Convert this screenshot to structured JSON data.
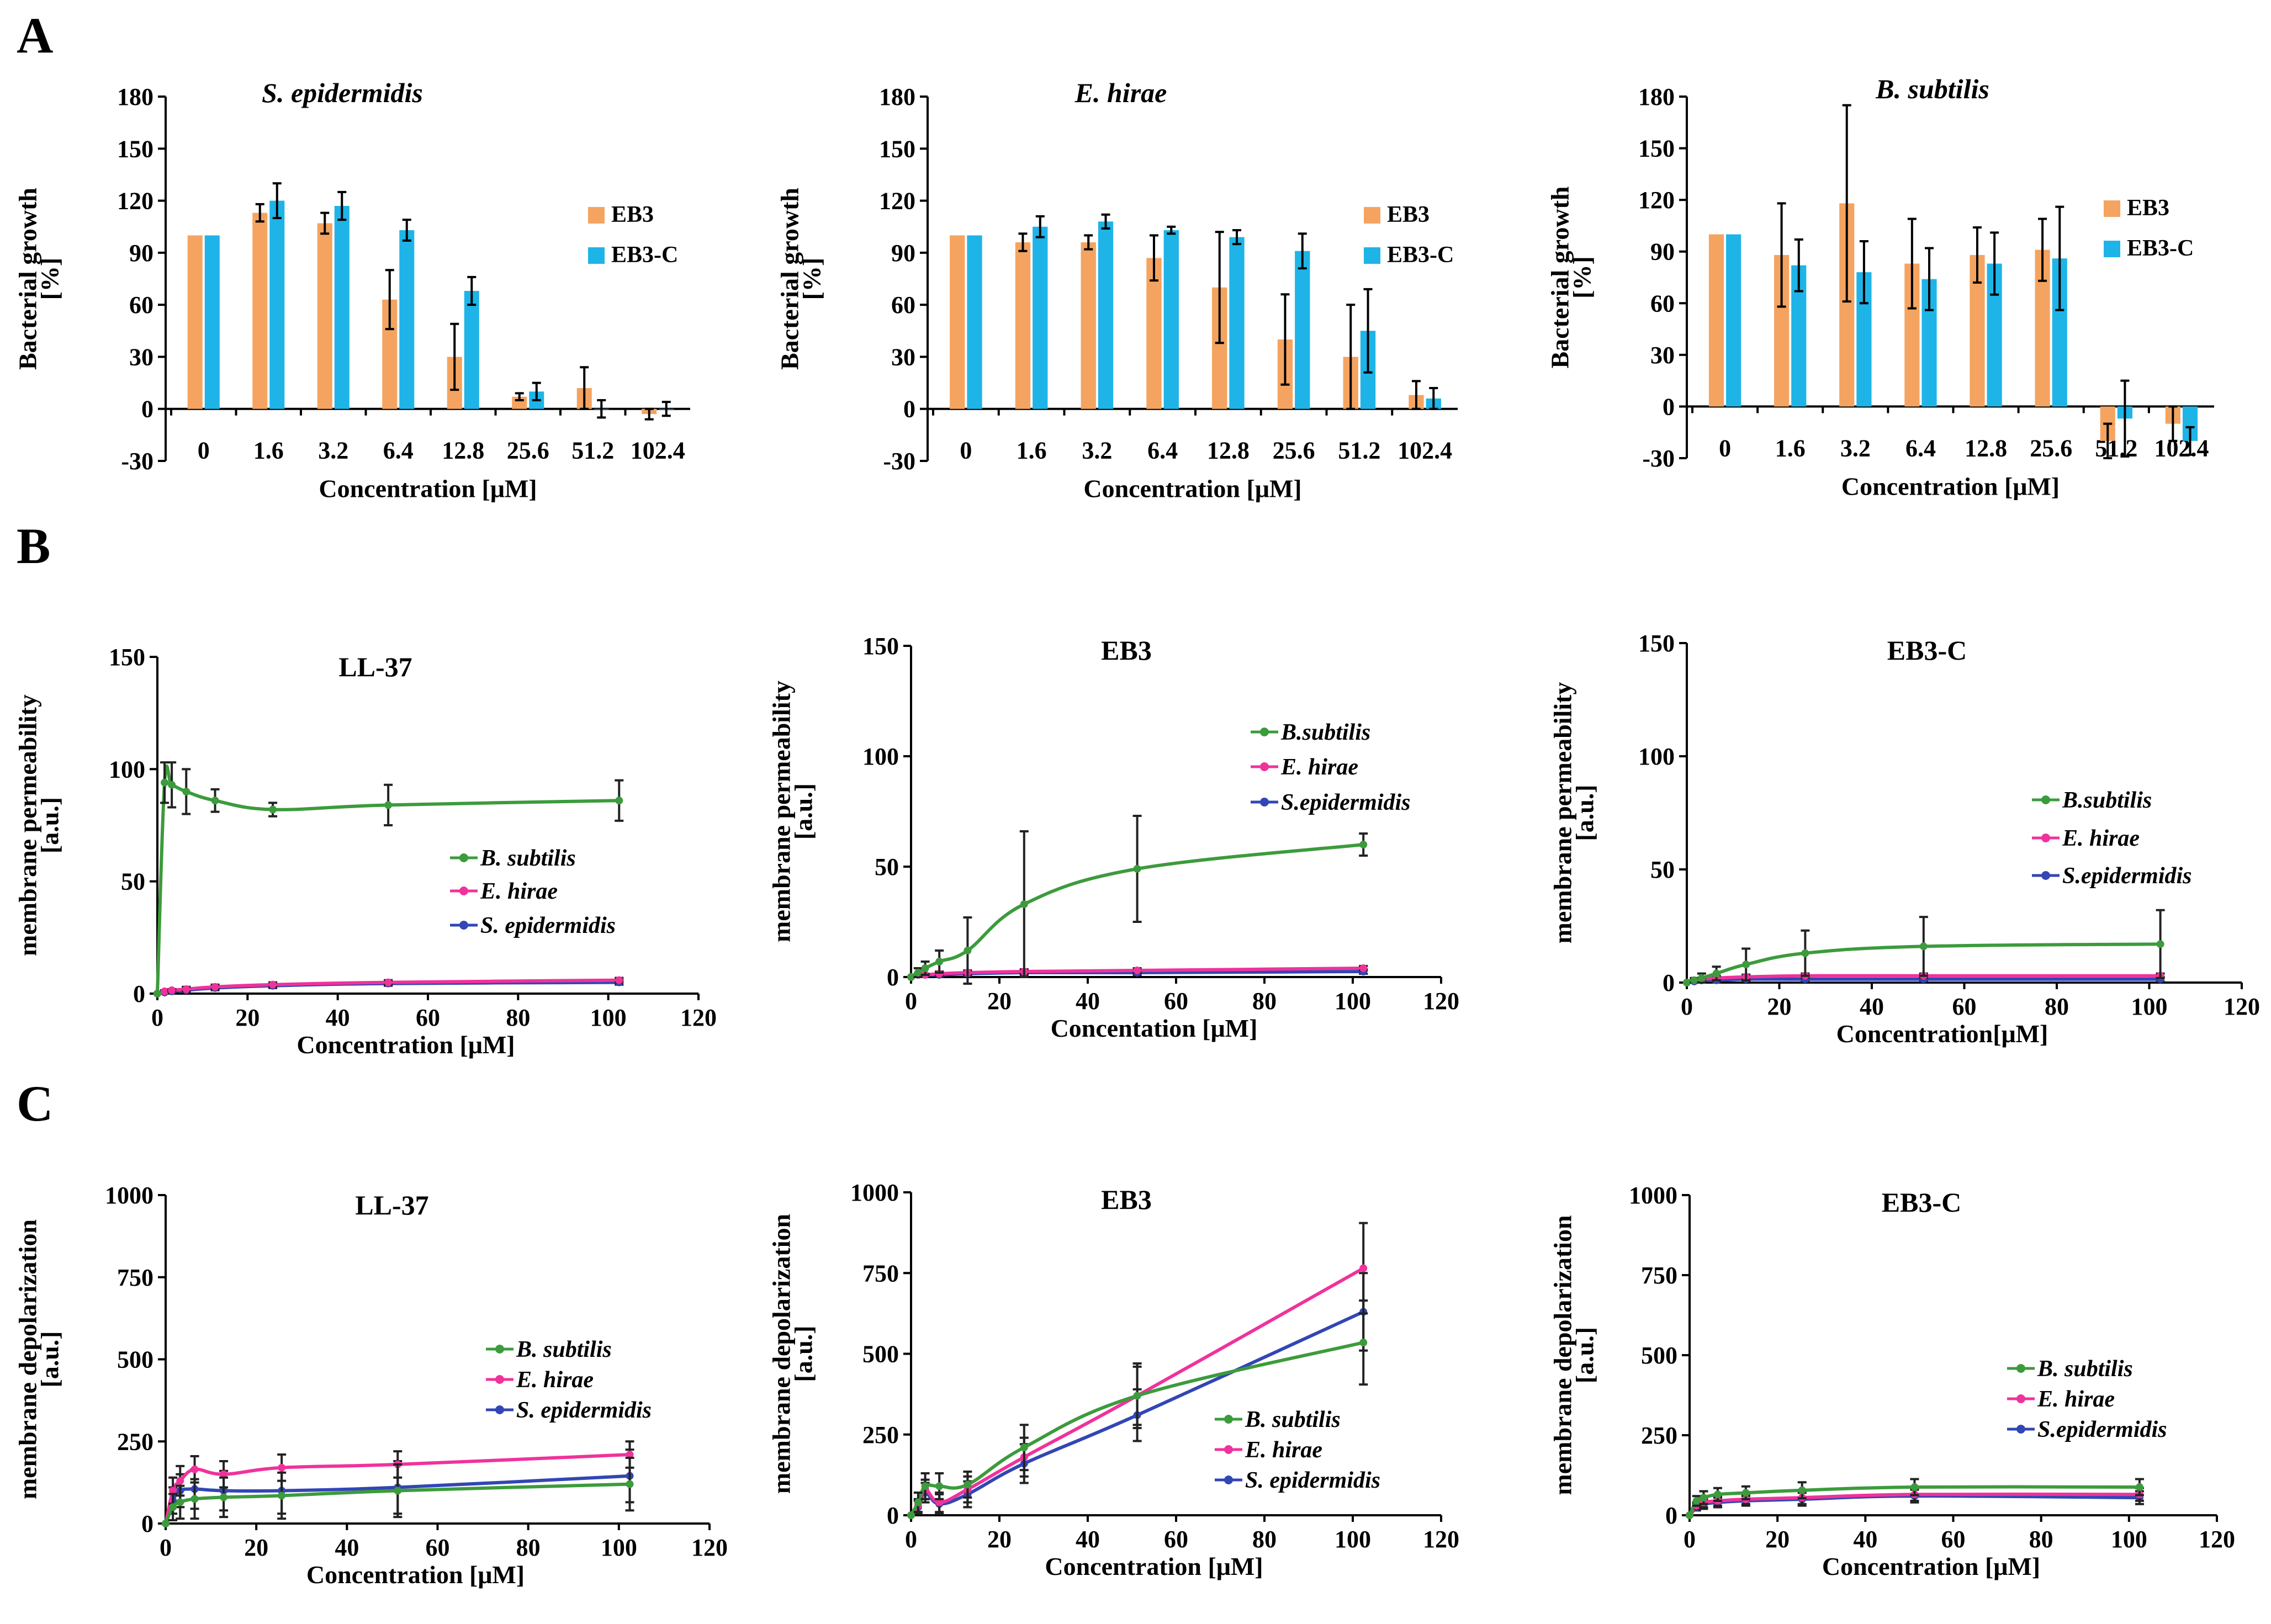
{
  "panel_labels": [
    "A",
    "B",
    "C"
  ],
  "colors": {
    "EB3": "#F4A460",
    "EB3-C": "#1EB4E8",
    "B. subtilis": "#3C9B3C",
    "E. hirae": "#F0329B",
    "S. epidermidis": "#3246B4",
    "errorbar": "#000000"
  },
  "chart_data": [
    {
      "id": "A1",
      "type": "bar",
      "title": "S. epidermidis",
      "xlabel": "Concentration [μM]",
      "ylabel": "Bacterial growth",
      "ylabel_unit": "[%]",
      "categories": [
        "0",
        "1.6",
        "3.2",
        "6.4",
        "12.8",
        "25.6",
        "51.2",
        "102.4"
      ],
      "ylim": [
        -30,
        180
      ],
      "yticks": [
        -30,
        0,
        30,
        60,
        90,
        120,
        150,
        180
      ],
      "legend": [
        "EB3",
        "EB3-C"
      ],
      "series": [
        {
          "name": "EB3",
          "values": [
            100,
            113,
            107,
            63,
            30,
            7,
            12,
            -3
          ],
          "errors": [
            0,
            5,
            6,
            17,
            19,
            2,
            12,
            3
          ]
        },
        {
          "name": "EB3-C",
          "values": [
            100,
            120,
            117,
            103,
            68,
            10,
            0,
            0
          ],
          "errors": [
            0,
            10,
            8,
            6,
            8,
            5,
            5,
            4
          ]
        }
      ]
    },
    {
      "id": "A2",
      "type": "bar",
      "title": "E. hirae",
      "xlabel": "Concentration [μM]",
      "ylabel": "Bacterial growth",
      "ylabel_unit": "[%]",
      "categories": [
        "0",
        "1.6",
        "3.2",
        "6.4",
        "12.8",
        "25.6",
        "51.2",
        "102.4"
      ],
      "ylim": [
        -30,
        180
      ],
      "yticks": [
        -30,
        0,
        30,
        60,
        90,
        120,
        150,
        180
      ],
      "legend": [
        "EB3",
        "EB3-C"
      ],
      "series": [
        {
          "name": "EB3",
          "values": [
            100,
            96,
            96,
            87,
            70,
            40,
            30,
            8
          ],
          "errors": [
            0,
            5,
            4,
            13,
            32,
            26,
            30,
            8
          ]
        },
        {
          "name": "EB3-C",
          "values": [
            100,
            105,
            108,
            103,
            99,
            91,
            45,
            6
          ],
          "errors": [
            0,
            6,
            4,
            2,
            4,
            10,
            24,
            6
          ]
        }
      ]
    },
    {
      "id": "A3",
      "type": "bar",
      "title": "B. subtilis",
      "xlabel": "Concentration [μM]",
      "ylabel": "Bacterial growth",
      "ylabel_unit": "[%]",
      "categories": [
        "0",
        "1.6",
        "3.2",
        "6.4",
        "12.8",
        "25.6",
        "51.2",
        "102.4"
      ],
      "ylim": [
        -30,
        180
      ],
      "yticks": [
        -30,
        0,
        30,
        60,
        90,
        120,
        150,
        180
      ],
      "legend": [
        "EB3",
        "EB3-C"
      ],
      "series": [
        {
          "name": "EB3",
          "values": [
            100,
            88,
            118,
            83,
            88,
            91,
            -20,
            -10
          ],
          "errors": [
            0,
            30,
            57,
            26,
            16,
            18,
            10,
            10
          ]
        },
        {
          "name": "EB3-C",
          "values": [
            100,
            82,
            78,
            74,
            83,
            86,
            -7,
            -20
          ],
          "errors": [
            0,
            15,
            18,
            18,
            18,
            30,
            22,
            8
          ]
        }
      ]
    },
    {
      "id": "B1",
      "type": "line",
      "title": "LL-37",
      "xlabel": "Concentration [μM]",
      "ylabel": "membrane permeability",
      "ylabel_unit": "[a.u.]",
      "xlim": [
        0,
        120
      ],
      "xticks": [
        0,
        20,
        40,
        60,
        80,
        100,
        120
      ],
      "ylim": [
        0,
        150
      ],
      "yticks": [
        0,
        50,
        100,
        150
      ],
      "x": [
        0,
        1.6,
        3.2,
        6.4,
        12.8,
        25.6,
        51.2,
        102.4
      ],
      "legend": [
        "B. subtilis",
        "E. hirae",
        "S. epidermidis"
      ],
      "series": [
        {
          "name": "B. subtilis",
          "values": [
            0,
            94,
            93,
            90,
            86,
            82,
            84,
            86
          ],
          "errors": [
            0,
            9,
            10,
            10,
            5,
            3,
            9,
            9
          ]
        },
        {
          "name": "E. hirae",
          "values": [
            0,
            1,
            1.5,
            2,
            3,
            4,
            5,
            6
          ],
          "errors": [
            0,
            0.5,
            0.5,
            1,
            1,
            1,
            1,
            1
          ]
        },
        {
          "name": "S. epidermidis",
          "values": [
            0,
            0.5,
            1,
            1.5,
            2.5,
            3.5,
            4.5,
            5
          ],
          "errors": [
            0,
            0.5,
            0.5,
            1,
            1,
            1,
            1,
            1
          ]
        }
      ]
    },
    {
      "id": "B2",
      "type": "line",
      "title": "EB3",
      "xlabel": "Concentation [μM]",
      "ylabel": "membrane permeability",
      "ylabel_unit": "[a.u.]",
      "xlim": [
        0,
        120
      ],
      "xticks": [
        0,
        20,
        40,
        60,
        80,
        100,
        120
      ],
      "ylim": [
        0,
        150
      ],
      "yticks": [
        0,
        50,
        100,
        150
      ],
      "x": [
        0,
        1.6,
        3.2,
        6.4,
        12.8,
        25.6,
        51.2,
        102.4
      ],
      "legend": [
        "B.subtilis",
        "E. hirae",
        "S.epidermidis"
      ],
      "series": [
        {
          "name": "B. subtilis",
          "values": [
            0,
            2,
            4,
            7,
            12,
            33,
            49,
            60
          ],
          "errors": [
            0,
            2,
            3,
            5,
            15,
            33,
            24,
            5
          ]
        },
        {
          "name": "E. hirae",
          "values": [
            0,
            1,
            1,
            1.5,
            2,
            2.5,
            3,
            4
          ],
          "errors": [
            0,
            0.5,
            0.5,
            1,
            1,
            1,
            1,
            1
          ]
        },
        {
          "name": "S. epidermidis",
          "values": [
            0,
            1,
            1,
            1,
            1.5,
            2,
            2,
            2.5
          ],
          "errors": [
            0,
            0.5,
            0.5,
            1,
            1,
            1,
            1,
            1
          ]
        }
      ]
    },
    {
      "id": "B3",
      "type": "line",
      "title": "EB3-C",
      "xlabel": "Concentration[μM]",
      "ylabel": "membrane permeability",
      "ylabel_unit": "[a.u.]",
      "xlim": [
        0,
        120
      ],
      "xticks": [
        0,
        20,
        40,
        60,
        80,
        100,
        120
      ],
      "ylim": [
        0,
        150
      ],
      "yticks": [
        0,
        50,
        100,
        150
      ],
      "x": [
        0,
        1.6,
        3.2,
        6.4,
        12.8,
        25.6,
        51.2,
        102.4
      ],
      "legend": [
        "B.subtilis",
        "E. hirae",
        "S.epidermidis"
      ],
      "series": [
        {
          "name": "B. subtilis",
          "values": [
            0,
            1,
            2,
            4,
            8,
            13,
            16,
            17
          ],
          "errors": [
            0,
            1,
            2,
            3,
            7,
            10,
            13,
            15
          ]
        },
        {
          "name": "E. hirae",
          "values": [
            0,
            1,
            1.5,
            2,
            2.5,
            3,
            3,
            3
          ],
          "errors": [
            0,
            0.5,
            0.5,
            1,
            1,
            1,
            1,
            1
          ]
        },
        {
          "name": "S. epidermidis",
          "values": [
            0,
            0.5,
            1,
            1,
            1.5,
            1.5,
            1.5,
            1.5
          ],
          "errors": [
            0,
            0.5,
            0.5,
            1,
            1,
            1,
            1,
            1
          ]
        }
      ]
    },
    {
      "id": "C1",
      "type": "line",
      "title": "LL-37",
      "xlabel": "Concentration [μM]",
      "ylabel": "membrane depolarization",
      "ylabel_unit": "[a.u.]",
      "xlim": [
        0,
        120
      ],
      "xticks": [
        0,
        20,
        40,
        60,
        80,
        100,
        120
      ],
      "ylim": [
        0,
        1000
      ],
      "yticks": [
        0,
        250,
        500,
        750,
        1000
      ],
      "x": [
        0,
        1.6,
        3.2,
        6.4,
        12.8,
        25.6,
        51.2,
        102.4
      ],
      "legend": [
        "B. subtilis",
        "E. hirae",
        "S. epidermidis"
      ],
      "series": [
        {
          "name": "B. subtilis",
          "values": [
            0,
            50,
            65,
            75,
            80,
            85,
            100,
            120
          ],
          "errors": [
            0,
            40,
            50,
            60,
            60,
            70,
            80,
            80
          ]
        },
        {
          "name": "E. hirae",
          "values": [
            0,
            100,
            130,
            165,
            150,
            170,
            180,
            210
          ],
          "errors": [
            0,
            40,
            45,
            40,
            40,
            40,
            40,
            40
          ]
        },
        {
          "name": "S. epidermidis",
          "values": [
            0,
            70,
            100,
            105,
            100,
            100,
            110,
            145
          ],
          "errors": [
            0,
            40,
            50,
            60,
            60,
            70,
            80,
            80
          ]
        }
      ]
    },
    {
      "id": "C2",
      "type": "line",
      "title": "EB3",
      "xlabel": "Concentration [μM]",
      "ylabel": "membrane depolarization",
      "ylabel_unit": "[a.u.]",
      "xlim": [
        0,
        120
      ],
      "xticks": [
        0,
        20,
        40,
        60,
        80,
        100,
        120
      ],
      "ylim": [
        0,
        1000
      ],
      "yticks": [
        0,
        250,
        500,
        750,
        1000
      ],
      "x": [
        0,
        1.6,
        3.2,
        6.4,
        12.8,
        25.6,
        51.2,
        102.4
      ],
      "legend": [
        "B. subtilis",
        "E. hirae",
        "S. epidermidis"
      ],
      "series": [
        {
          "name": "B. subtilis",
          "values": [
            0,
            40,
            90,
            90,
            95,
            210,
            370,
            535
          ],
          "errors": [
            0,
            30,
            40,
            40,
            40,
            70,
            100,
            130
          ]
        },
        {
          "name": "E. hirae",
          "values": [
            0,
            30,
            80,
            40,
            80,
            180,
            370,
            765
          ],
          "errors": [
            0,
            20,
            30,
            30,
            40,
            60,
            90,
            140
          ]
        },
        {
          "name": "S. epidermidis",
          "values": [
            0,
            25,
            70,
            35,
            65,
            160,
            310,
            630
          ],
          "errors": [
            0,
            20,
            30,
            30,
            40,
            60,
            80,
            120
          ]
        }
      ]
    },
    {
      "id": "C3",
      "type": "line",
      "title": "EB3-C",
      "xlabel": "Concentration [μM]",
      "ylabel": "membrane depolarization",
      "ylabel_unit": "[a.u.]",
      "xlim": [
        0,
        120
      ],
      "xticks": [
        0,
        20,
        40,
        60,
        80,
        100,
        120
      ],
      "ylim": [
        0,
        1000
      ],
      "yticks": [
        0,
        250,
        500,
        750,
        1000
      ],
      "x": [
        0,
        1.6,
        3.2,
        6.4,
        12.8,
        25.6,
        51.2,
        102.4
      ],
      "legend": [
        "B. subtilis",
        "E. hirae",
        "S.epidermidis"
      ],
      "series": [
        {
          "name": "B. subtilis",
          "values": [
            0,
            45,
            55,
            65,
            70,
            78,
            88,
            88
          ],
          "errors": [
            0,
            15,
            20,
            20,
            20,
            25,
            25,
            25
          ]
        },
        {
          "name": "E. hirae",
          "values": [
            0,
            30,
            40,
            45,
            50,
            55,
            65,
            65
          ],
          "errors": [
            0,
            10,
            15,
            15,
            15,
            20,
            20,
            20
          ]
        },
        {
          "name": "S. epidermidis",
          "values": [
            0,
            25,
            35,
            40,
            45,
            50,
            60,
            55
          ],
          "errors": [
            0,
            10,
            15,
            15,
            15,
            20,
            20,
            20
          ]
        }
      ]
    }
  ]
}
